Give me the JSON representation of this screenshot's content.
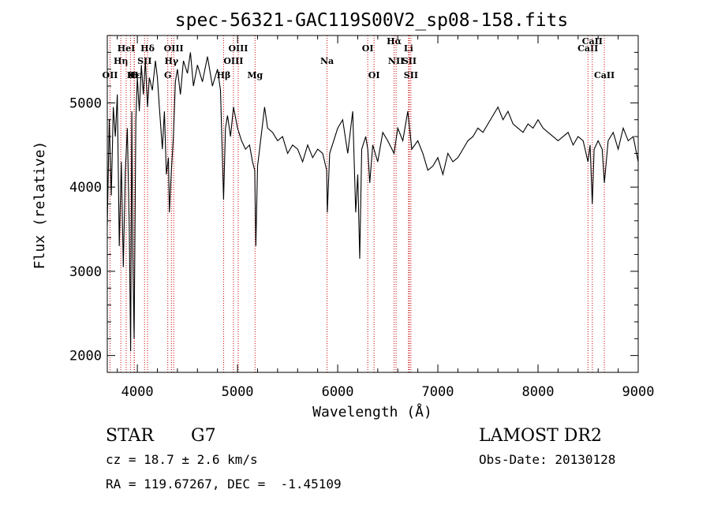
{
  "chart_data": {
    "type": "line",
    "title": "spec-56321-GAC119S00V2_sp08-158.fits",
    "xlabel": "Wavelength (Å)",
    "ylabel": "Flux (relative)",
    "xlim": [
      3700,
      9000
    ],
    "ylim": [
      1800,
      5800
    ],
    "x_ticks": [
      4000,
      5000,
      6000,
      7000,
      8000,
      9000
    ],
    "y_ticks": [
      2000,
      3000,
      4000,
      5000
    ],
    "grid": false,
    "series": [
      {
        "points": [
          [
            3700,
            3550
          ],
          [
            3720,
            4800
          ],
          [
            3740,
            3900
          ],
          [
            3760,
            4950
          ],
          [
            3780,
            4600
          ],
          [
            3800,
            5100
          ],
          [
            3820,
            3300
          ],
          [
            3840,
            4300
          ],
          [
            3860,
            3050
          ],
          [
            3880,
            4200
          ],
          [
            3900,
            4700
          ],
          [
            3920,
            3500
          ],
          [
            3933,
            2050
          ],
          [
            3945,
            4900
          ],
          [
            3955,
            3200
          ],
          [
            3968,
            2200
          ],
          [
            3985,
            4800
          ],
          [
            4000,
            5300
          ],
          [
            4020,
            4900
          ],
          [
            4040,
            5450
          ],
          [
            4060,
            5100
          ],
          [
            4080,
            5500
          ],
          [
            4102,
            4950
          ],
          [
            4120,
            5300
          ],
          [
            4150,
            5150
          ],
          [
            4180,
            5500
          ],
          [
            4200,
            5300
          ],
          [
            4220,
            4950
          ],
          [
            4250,
            4450
          ],
          [
            4270,
            4900
          ],
          [
            4290,
            4150
          ],
          [
            4310,
            4350
          ],
          [
            4320,
            3700
          ],
          [
            4340,
            4200
          ],
          [
            4360,
            4600
          ],
          [
            4380,
            5250
          ],
          [
            4400,
            5400
          ],
          [
            4430,
            5100
          ],
          [
            4460,
            5500
          ],
          [
            4500,
            5350
          ],
          [
            4530,
            5600
          ],
          [
            4560,
            5200
          ],
          [
            4600,
            5450
          ],
          [
            4650,
            5250
          ],
          [
            4700,
            5550
          ],
          [
            4750,
            5200
          ],
          [
            4800,
            5400
          ],
          [
            4830,
            5150
          ],
          [
            4861,
            3850
          ],
          [
            4880,
            4700
          ],
          [
            4900,
            4850
          ],
          [
            4930,
            4600
          ],
          [
            4960,
            4950
          ],
          [
            5000,
            4700
          ],
          [
            5040,
            4550
          ],
          [
            5080,
            4450
          ],
          [
            5120,
            4500
          ],
          [
            5150,
            4300
          ],
          [
            5172,
            4200
          ],
          [
            5183,
            3300
          ],
          [
            5200,
            4250
          ],
          [
            5240,
            4650
          ],
          [
            5270,
            4950
          ],
          [
            5300,
            4700
          ],
          [
            5350,
            4650
          ],
          [
            5400,
            4550
          ],
          [
            5450,
            4600
          ],
          [
            5500,
            4400
          ],
          [
            5550,
            4500
          ],
          [
            5600,
            4450
          ],
          [
            5650,
            4300
          ],
          [
            5700,
            4500
          ],
          [
            5750,
            4350
          ],
          [
            5800,
            4450
          ],
          [
            5850,
            4400
          ],
          [
            5890,
            4200
          ],
          [
            5896,
            3700
          ],
          [
            5920,
            4400
          ],
          [
            5960,
            4550
          ],
          [
            6000,
            4700
          ],
          [
            6050,
            4800
          ],
          [
            6100,
            4400
          ],
          [
            6150,
            4900
          ],
          [
            6180,
            3700
          ],
          [
            6200,
            4150
          ],
          [
            6220,
            3150
          ],
          [
            6240,
            4450
          ],
          [
            6280,
            4600
          ],
          [
            6300,
            4450
          ],
          [
            6320,
            4050
          ],
          [
            6350,
            4500
          ],
          [
            6400,
            4300
          ],
          [
            6450,
            4650
          ],
          [
            6500,
            4550
          ],
          [
            6563,
            4400
          ],
          [
            6600,
            4700
          ],
          [
            6650,
            4550
          ],
          [
            6700,
            4900
          ],
          [
            6740,
            4450
          ],
          [
            6800,
            4550
          ],
          [
            6850,
            4400
          ],
          [
            6900,
            4200
          ],
          [
            6950,
            4250
          ],
          [
            7000,
            4350
          ],
          [
            7050,
            4150
          ],
          [
            7100,
            4400
          ],
          [
            7150,
            4300
          ],
          [
            7200,
            4350
          ],
          [
            7250,
            4450
          ],
          [
            7300,
            4550
          ],
          [
            7350,
            4600
          ],
          [
            7400,
            4700
          ],
          [
            7450,
            4650
          ],
          [
            7500,
            4750
          ],
          [
            7550,
            4850
          ],
          [
            7600,
            4950
          ],
          [
            7650,
            4800
          ],
          [
            7700,
            4900
          ],
          [
            7750,
            4750
          ],
          [
            7800,
            4700
          ],
          [
            7850,
            4650
          ],
          [
            7900,
            4750
          ],
          [
            7950,
            4700
          ],
          [
            8000,
            4800
          ],
          [
            8050,
            4700
          ],
          [
            8100,
            4650
          ],
          [
            8150,
            4600
          ],
          [
            8200,
            4550
          ],
          [
            8250,
            4600
          ],
          [
            8300,
            4650
          ],
          [
            8350,
            4500
          ],
          [
            8400,
            4600
          ],
          [
            8450,
            4550
          ],
          [
            8498,
            4300
          ],
          [
            8520,
            4500
          ],
          [
            8542,
            3800
          ],
          [
            8560,
            4450
          ],
          [
            8600,
            4550
          ],
          [
            8640,
            4450
          ],
          [
            8662,
            4050
          ],
          [
            8700,
            4550
          ],
          [
            8750,
            4650
          ],
          [
            8800,
            4450
          ],
          [
            8850,
            4700
          ],
          [
            8900,
            4550
          ],
          [
            8950,
            4600
          ],
          [
            9000,
            4300
          ]
        ]
      }
    ],
    "line_markers": [
      {
        "wavelength": 3727,
        "label": "OII",
        "row": 3
      },
      {
        "wavelength": 3835,
        "label": "Hη",
        "row": 2
      },
      {
        "wavelength": 3889,
        "label": "HeI",
        "row": 1
      },
      {
        "wavelength": 3933,
        "label": "K",
        "row": 3
      },
      {
        "wavelength": 3968,
        "label": "H",
        "row": 3
      },
      {
        "wavelength": 3970,
        "label": "Hε",
        "row": 3
      },
      {
        "wavelength": 4102,
        "label": "Hδ",
        "row": 1
      },
      {
        "wavelength": 4072,
        "label": "SII",
        "row": 2
      },
      {
        "wavelength": 4304,
        "label": "G",
        "row": 3
      },
      {
        "wavelength": 4340,
        "label": "Hγ",
        "row": 2
      },
      {
        "wavelength": 4363,
        "label": "OIII",
        "row": 1
      },
      {
        "wavelength": 4861,
        "label": "Hβ",
        "row": 3
      },
      {
        "wavelength": 4959,
        "label": "OIII",
        "row": 2
      },
      {
        "wavelength": 5007,
        "label": "OIII",
        "row": 1
      },
      {
        "wavelength": 5175,
        "label": "Mg",
        "row": 3
      },
      {
        "wavelength": 5894,
        "label": "Na",
        "row": 2
      },
      {
        "wavelength": 6300,
        "label": "OI",
        "row": 1
      },
      {
        "wavelength": 6363,
        "label": "OI",
        "row": 3
      },
      {
        "wavelength": 6563,
        "label": "Hα",
        "row": 0
      },
      {
        "wavelength": 6583,
        "label": "NII",
        "row": 2
      },
      {
        "wavelength": 6707,
        "label": "Li",
        "row": 1
      },
      {
        "wavelength": 6716,
        "label": "SII",
        "row": 2
      },
      {
        "wavelength": 6731,
        "label": "SII",
        "row": 3
      },
      {
        "wavelength": 8498,
        "label": "CaII",
        "row": 1
      },
      {
        "wavelength": 8542,
        "label": "CaII",
        "row": 0
      },
      {
        "wavelength": 8662,
        "label": "CaII",
        "row": 3
      }
    ]
  },
  "info": {
    "object_class": "STAR",
    "subclass": "G7",
    "survey": "LAMOST DR2",
    "redshift_line": "cz = 18.7 ± 2.6 km/s",
    "obs_date_line": "Obs-Date: 20130128",
    "coords_line": "RA = 119.67267, DEC =  -1.45109"
  },
  "colors": {
    "spectrum": "#000000",
    "marker_line": "#cc0000",
    "axes": "#000000"
  }
}
